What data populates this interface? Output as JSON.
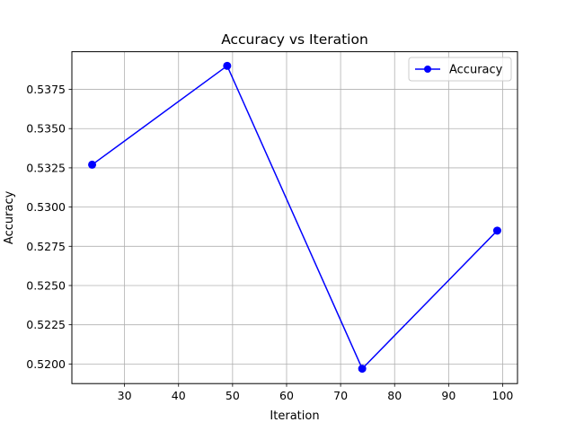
{
  "chart_data": {
    "type": "line",
    "title": "Accuracy vs Iteration",
    "xlabel": "Iteration",
    "ylabel": "Accuracy",
    "xlim": [
      20.25,
      102.75
    ],
    "ylim": [
      0.51875,
      0.5399
    ],
    "xticks": [
      30,
      40,
      50,
      60,
      70,
      80,
      90,
      100
    ],
    "xtick_labels": [
      "30",
      "40",
      "50",
      "60",
      "70",
      "80",
      "90",
      "100"
    ],
    "yticks": [
      0.52,
      0.5225,
      0.525,
      0.5275,
      0.53,
      0.5325,
      0.535,
      0.5375
    ],
    "ytick_labels": [
      "0.5200",
      "0.5225",
      "0.5250",
      "0.5275",
      "0.5300",
      "0.5325",
      "0.5350",
      "0.5375"
    ],
    "grid": true,
    "legend_position": "top-right",
    "series": [
      {
        "name": "Accuracy",
        "color": "#0000ff",
        "marker": "circle",
        "x": [
          24,
          49,
          74,
          99
        ],
        "y": [
          0.5327,
          0.539,
          0.5197,
          0.5285
        ]
      }
    ]
  }
}
